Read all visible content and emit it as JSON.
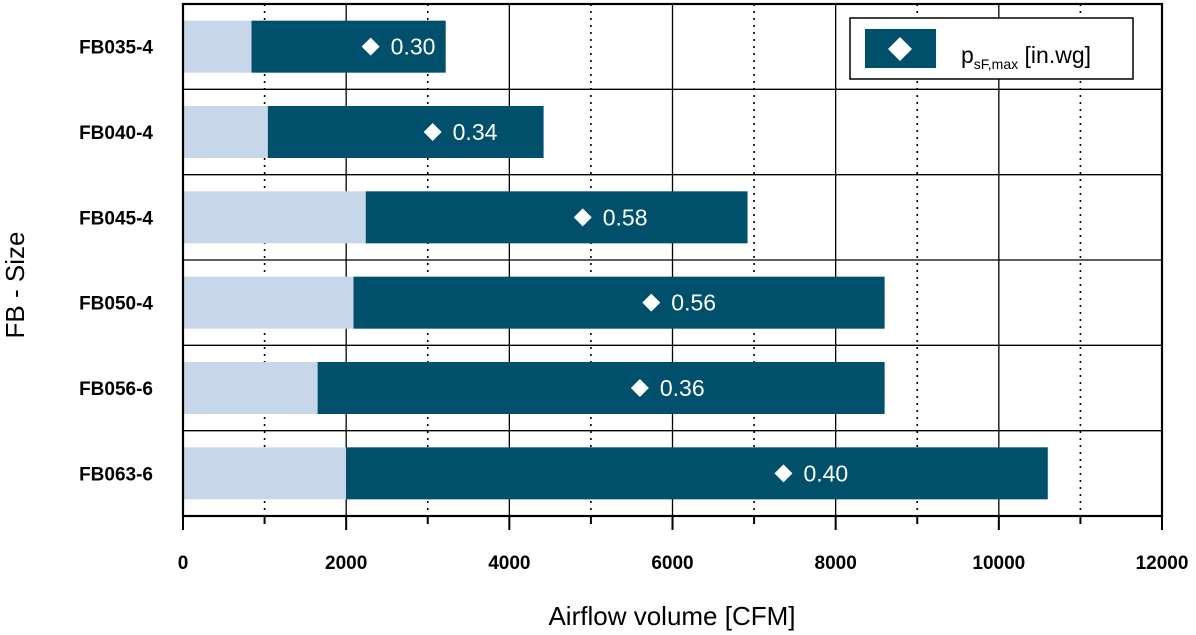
{
  "chart_data": {
    "type": "bar",
    "orientation": "horizontal",
    "stacked_range": true,
    "categories": [
      "FB035-4",
      "FB040-4",
      "FB045-4",
      "FB050-4",
      "FB056-6",
      "FB063-6"
    ],
    "range_min": [
      840,
      1040,
      2240,
      2090,
      1650,
      2000
    ],
    "range_max": [
      3220,
      4420,
      6920,
      8600,
      8600,
      10600
    ],
    "marker_x": [
      2300,
      3060,
      4900,
      5740,
      5600,
      7360
    ],
    "marker_values": [
      "0.30",
      "0.34",
      "0.58",
      "0.56",
      "0.36",
      "0.40"
    ],
    "xlabel": "Airflow volume [CFM]",
    "ylabel": "FB - Size",
    "xlim": [
      0,
      12000
    ],
    "xticks": [
      "0",
      "2000",
      "4000",
      "6000",
      "8000",
      "10000",
      "12000"
    ],
    "legend": {
      "main": "p",
      "sub": "sF,max",
      "unit": " [in.wg]",
      "placement": "top-right"
    },
    "grid": "solid at 2000-step ticks, dotted at 1000-step midpoints",
    "colors": {
      "range_bar": "#004f6b",
      "lead_bar": "#c8d6ea",
      "marker": "#ffffff",
      "grid": "#000000"
    }
  }
}
